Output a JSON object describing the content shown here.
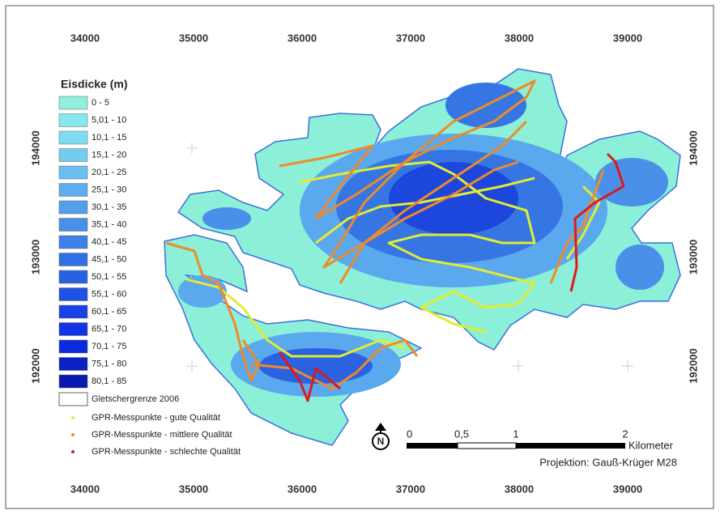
{
  "legend": {
    "title": "Eisdicke (m)",
    "items": [
      {
        "label": "0 - 5",
        "color": "#8ff0de"
      },
      {
        "label": "5,01 - 10",
        "color": "#86e8ee"
      },
      {
        "label": "10,1 - 15",
        "color": "#7edcf0"
      },
      {
        "label": "15,1 - 20",
        "color": "#74cdf0"
      },
      {
        "label": "20,1 - 25",
        "color": "#6abef0"
      },
      {
        "label": "25,1 - 30",
        "color": "#5eaeee"
      },
      {
        "label": "30,1 - 35",
        "color": "#549fea"
      },
      {
        "label": "35,1 - 40",
        "color": "#4890e8"
      },
      {
        "label": "40,1 - 45",
        "color": "#3c80e8"
      },
      {
        "label": "45,1 - 50",
        "color": "#3070e4"
      },
      {
        "label": "50,1 - 55",
        "color": "#2862e2"
      },
      {
        "label": "55,1 - 60",
        "color": "#2052e2"
      },
      {
        "label": "60,1 - 65",
        "color": "#1842e8"
      },
      {
        "label": "65,1 - 70",
        "color": "#1034e8"
      },
      {
        "label": "70,1 - 75",
        "color": "#0a2ae0"
      },
      {
        "label": "75,1 - 80",
        "color": "#0822c8"
      },
      {
        "label": "80,1 - 85",
        "color": "#0818b0"
      }
    ],
    "boundary": "Gletschergrenze 2006",
    "points": [
      {
        "label": "GPR-Messpunkte - gute Qualität",
        "color": "#e2ec30"
      },
      {
        "label": "GPR-Messpunkte - mittlere Qualität",
        "color": "#f08a28"
      },
      {
        "label": "GPR-Messpunkte - schlechte Qualität",
        "color": "#e01818"
      }
    ]
  },
  "grid": {
    "x_labels": [
      "34000",
      "35000",
      "36000",
      "37000",
      "38000",
      "39000"
    ],
    "y_labels": [
      "194000",
      "193000",
      "192000"
    ]
  },
  "scale_bar": {
    "labels": [
      "0",
      "0,5",
      "1",
      "2"
    ],
    "unit": "Kilometer"
  },
  "north_arrow": "N",
  "projection": "Projektion: Gauß-Krüger M28"
}
